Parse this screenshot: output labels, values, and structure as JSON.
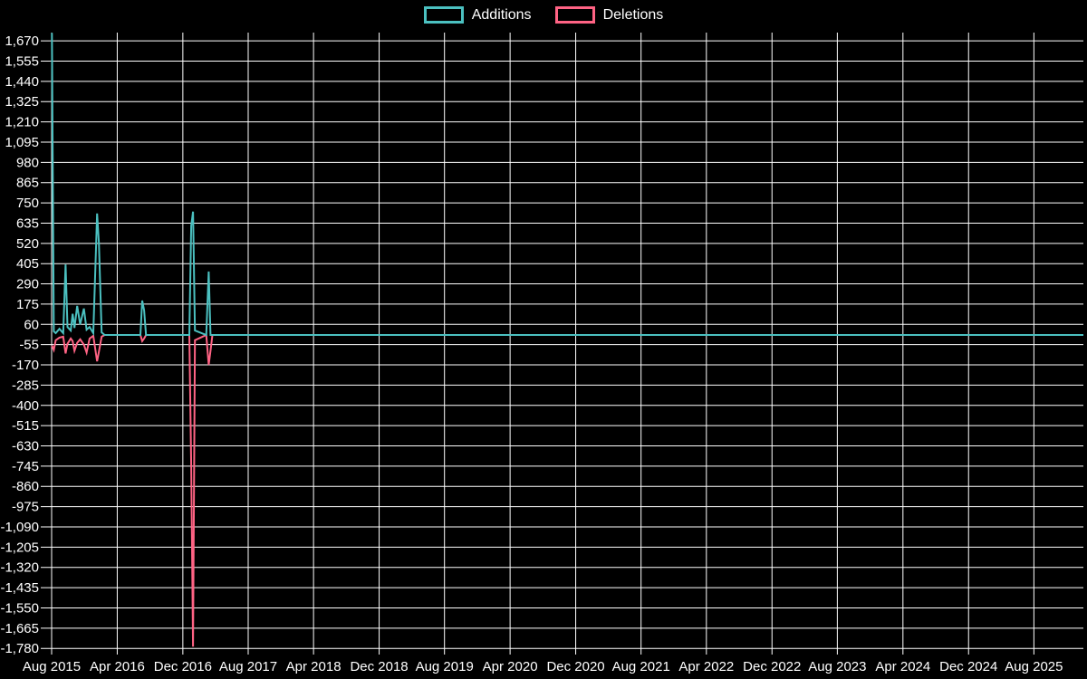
{
  "legend": [
    {
      "label": "Additions",
      "color": "#4bc0c0"
    },
    {
      "label": "Deletions",
      "color": "#ff6384"
    }
  ],
  "chart_data": {
    "type": "line",
    "title": "",
    "background": "#000000",
    "grid": true,
    "grid_color": "#ffffff",
    "text_color": "#ffffff",
    "legend_position": "top",
    "y_axis": {
      "max_tick": 1670,
      "min_tick": -1780,
      "step": 115,
      "ylim": [
        -1815,
        1717
      ]
    },
    "x_ticks": [
      {
        "label": "Aug 2015",
        "date": "2015-08-01"
      },
      {
        "label": "Apr 2016",
        "date": "2016-04-01"
      },
      {
        "label": "Dec 2016",
        "date": "2016-12-01"
      },
      {
        "label": "Aug 2017",
        "date": "2017-08-01"
      },
      {
        "label": "Apr 2018",
        "date": "2018-04-01"
      },
      {
        "label": "Dec 2018",
        "date": "2018-12-01"
      },
      {
        "label": "Aug 2019",
        "date": "2019-08-01"
      },
      {
        "label": "Apr 2020",
        "date": "2020-04-01"
      },
      {
        "label": "Dec 2020",
        "date": "2020-12-01"
      },
      {
        "label": "Aug 2021",
        "date": "2021-08-01"
      },
      {
        "label": "Apr 2022",
        "date": "2022-04-01"
      },
      {
        "label": "Dec 2022",
        "date": "2022-12-01"
      },
      {
        "label": "Aug 2023",
        "date": "2023-08-01"
      },
      {
        "label": "Apr 2024",
        "date": "2024-04-01"
      },
      {
        "label": "Dec 2024",
        "date": "2024-12-01"
      },
      {
        "label": "Aug 2025",
        "date": "2025-08-01"
      }
    ],
    "x_range": [
      "2015-08-01",
      "2026-02-01"
    ],
    "x": [
      "2015-08-02",
      "2015-08-09",
      "2015-08-16",
      "2015-08-30",
      "2015-09-13",
      "2015-09-22",
      "2015-09-29",
      "2015-10-11",
      "2015-10-18",
      "2015-10-25",
      "2015-11-04",
      "2015-11-15",
      "2015-11-29",
      "2015-12-09",
      "2015-12-20",
      "2016-01-03",
      "2016-01-17",
      "2016-01-24",
      "2016-02-03",
      "2016-02-14",
      "2016-06-26",
      "2016-07-03",
      "2016-07-10",
      "2016-07-17",
      "2016-12-25",
      "2017-01-01",
      "2017-01-08",
      "2017-01-15",
      "2017-02-26",
      "2017-03-07",
      "2017-03-14",
      "2017-03-21",
      "2026-02-01"
    ],
    "series": [
      {
        "name": "Additions",
        "color": "#4bc0c0",
        "values": [
          1715,
          20,
          10,
          35,
          10,
          400,
          45,
          25,
          120,
          40,
          165,
          60,
          150,
          30,
          45,
          10,
          690,
          520,
          15,
          0,
          0,
          195,
          140,
          0,
          0,
          620,
          700,
          25,
          0,
          360,
          0,
          0,
          0
        ]
      },
      {
        "name": "Deletions",
        "color": "#ff6384",
        "values": [
          -60,
          -85,
          -30,
          -15,
          -10,
          -105,
          -50,
          -20,
          -35,
          -90,
          -45,
          -25,
          -55,
          -100,
          -20,
          -5,
          -150,
          -95,
          -10,
          0,
          0,
          -35,
          -20,
          0,
          0,
          -745,
          -1770,
          -30,
          0,
          -170,
          -90,
          0,
          0
        ]
      }
    ]
  }
}
